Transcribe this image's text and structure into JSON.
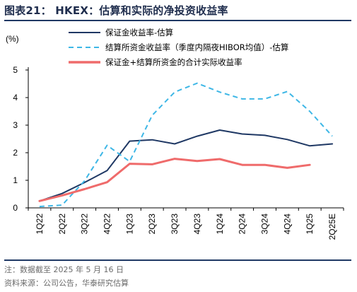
{
  "header": {
    "title": "图表21： HKEX：估算和实际的净投资收益率"
  },
  "footer": {
    "note": "注：数据截至 2025 年 5 月 16 日",
    "source": "资料来源：公司公告，华泰研究估算"
  },
  "chart_data": {
    "type": "line",
    "title": "图表21： HKEX：估算和实际的净投资收益率",
    "unit_label": "(%)",
    "xlabel": "",
    "ylabel": "",
    "ylim": [
      0,
      5
    ],
    "yticks": [
      0,
      1,
      2,
      3,
      4,
      5
    ],
    "grid": false,
    "legend_position": "top-center",
    "categories": [
      "1Q22",
      "2Q22",
      "3Q22",
      "4Q22",
      "1Q23",
      "2Q23",
      "3Q23",
      "4Q23",
      "1Q24",
      "2Q24",
      "3Q24",
      "4Q24",
      "1Q25",
      "2Q25E"
    ],
    "series": [
      {
        "name": "保证金收益率-估算",
        "style": "solid",
        "color": "#1f3864",
        "values": [
          0.25,
          0.52,
          0.92,
          1.35,
          2.42,
          2.47,
          2.32,
          2.6,
          2.82,
          2.68,
          2.63,
          2.48,
          2.25,
          2.32
        ]
      },
      {
        "name": "结算所资金收益率（季度内隔夜HIBOR均值）-估算",
        "style": "dashed",
        "color": "#3eb7e6",
        "values": [
          0.05,
          0.1,
          0.98,
          2.27,
          1.68,
          3.35,
          4.2,
          4.52,
          4.2,
          3.95,
          3.95,
          4.22,
          3.5,
          2.6
        ]
      },
      {
        "name": "保证金+结算所资金的合计实际收益率",
        "style": "solid",
        "color": "#ef6b6b",
        "values": [
          0.25,
          0.45,
          0.68,
          0.93,
          1.6,
          1.58,
          1.78,
          1.7,
          1.77,
          1.56,
          1.56,
          1.45,
          1.56,
          null
        ]
      }
    ]
  }
}
